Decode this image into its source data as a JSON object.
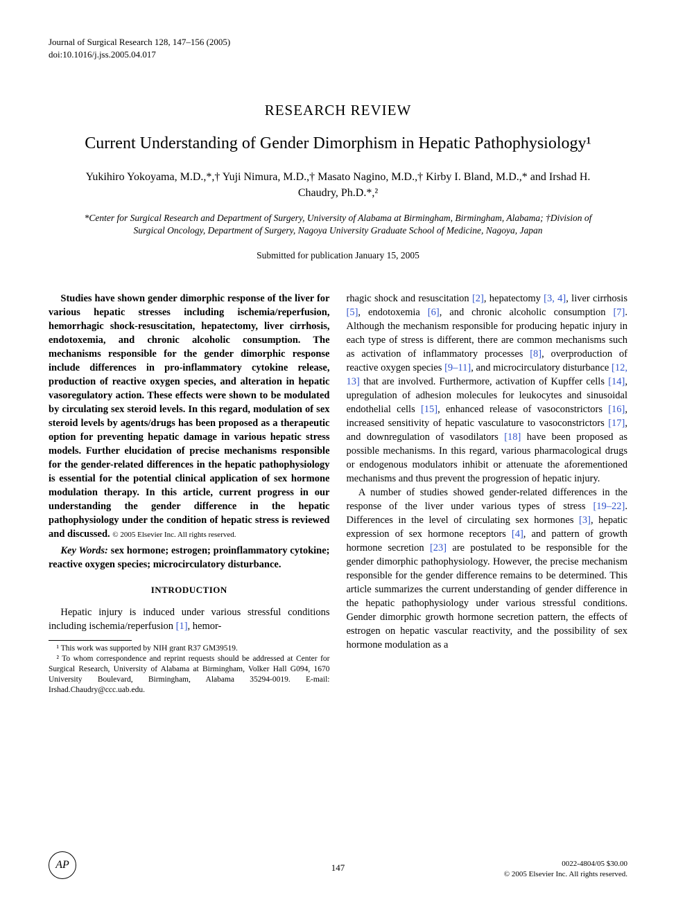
{
  "header": {
    "journal_line": "Journal of Surgical Research 128, 147–156 (2005)",
    "doi_line": "doi:10.1016/j.jss.2005.04.017"
  },
  "article_type": "RESEARCH REVIEW",
  "title": "Current Understanding of Gender Dimorphism in Hepatic Pathophysiology¹",
  "authors": "Yukihiro Yokoyama, M.D.,*,† Yuji Nimura, M.D.,† Masato Nagino, M.D.,† Kirby I. Bland, M.D.,* and Irshad H. Chaudry, Ph.D.*,²",
  "affiliations": "*Center for Surgical Research and Department of Surgery, University of Alabama at Birmingham, Birmingham, Alabama; †Division of Surgical Oncology, Department of Surgery, Nagoya University Graduate School of Medicine, Nagoya, Japan",
  "submitted": "Submitted for publication January 15, 2005",
  "abstract_text": "Studies have shown gender dimorphic response of the liver for various hepatic stresses including ischemia/reperfusion, hemorrhagic shock-resuscitation, hepatectomy, liver cirrhosis, endotoxemia, and chronic alcoholic consumption. The mechanisms responsible for the gender dimorphic response include differences in pro-inflammatory cytokine release, production of reactive oxygen species, and alteration in hepatic vasoregulatory action. These effects were shown to be modulated by circulating sex steroid levels. In this regard, modulation of sex steroid levels by agents/drugs has been proposed as a therapeutic option for preventing hepatic damage in various hepatic stress models. Further elucidation of precise mechanisms responsible for the gender-related differences in the hepatic pathophysiology is essential for the potential clinical application of sex hormone modulation therapy. In this article, current progress in our understanding the gender difference in the hepatic pathophysiology under the condition of hepatic stress is reviewed and discussed.",
  "abstract_copyright": "© 2005 Elsevier Inc. All rights reserved.",
  "keywords_label": "Key Words:",
  "keywords_text": " sex hormone; estrogen; proinflammatory cytokine; reactive oxygen species; microcirculatory disturbance.",
  "section_introduction": "INTRODUCTION",
  "intro_left": "Hepatic injury is induced under various stressful conditions including ischemia/reperfusion ",
  "intro_left_tail": ", hemor-",
  "ref1": "[1]",
  "footnotes": {
    "fn1": "¹ This work was supported by NIH grant R37 GM39519.",
    "fn2": "² To whom correspondence and reprint requests should be addressed at Center for Surgical Research, University of Alabama at Birmingham, Volker Hall G094, 1670 University Boulevard, Birmingham, Alabama 35294-0019. E-mail: Irshad.Chaudry@ccc.uab.edu."
  },
  "right_col": {
    "p1a": "rhagic shock and resuscitation ",
    "r2": "[2]",
    "p1b": ", hepatectomy ",
    "r34": "[3, 4]",
    "p1c": ", liver cirrhosis ",
    "r5": "[5]",
    "p1d": ", endotoxemia ",
    "r6": "[6]",
    "p1e": ", and chronic alcoholic consumption ",
    "r7": "[7]",
    "p1f": ". Although the mechanism responsible for producing hepatic injury in each type of stress is different, there are common mechanisms such as activation of inflammatory processes ",
    "r8": "[8]",
    "p1g": ", overproduction of reactive oxygen species ",
    "r911": "[9–11]",
    "p1h": ", and microcirculatory disturbance ",
    "r1213": "[12, 13]",
    "p1i": " that are involved. Furthermore, activation of Kupffer cells ",
    "r14": "[14]",
    "p1j": ", upregulation of adhesion molecules for leukocytes and sinusoidal endothelial cells ",
    "r15": "[15]",
    "p1k": ", enhanced release of vasoconstrictors ",
    "r16": "[16]",
    "p1l": ", increased sensitivity of hepatic vasculature to vasoconstrictors ",
    "r17": "[17]",
    "p1m": ", and downregulation of vasodilators ",
    "r18": "[18]",
    "p1n": " have been proposed as possible mechanisms. In this regard, various pharmacological drugs or endogenous modulators inhibit or attenuate the aforementioned mechanisms and thus prevent the progression of hepatic injury.",
    "p2a": "A number of studies showed gender-related differences in the response of the liver under various types of stress ",
    "r1922": "[19–22]",
    "p2b": ". Differences in the level of circulating sex hormones ",
    "r3b": "[3]",
    "p2c": ", hepatic expression of sex hormone receptors ",
    "r4b": "[4]",
    "p2d": ", and pattern of growth hormone secretion ",
    "r23": "[23]",
    "p2e": " are postulated to be responsible for the gender dimorphic pathophysiology. However, the precise mechanism responsible for the gender difference remains to be determined. This article summarizes the current understanding of gender difference in the hepatic pathophysiology under various stressful conditions. Gender dimorphic growth hormone secretion pattern, the effects of estrogen on hepatic vascular reactivity, and the possibility of sex hormone modulation as a"
  },
  "footer": {
    "logo": "AP",
    "page": "147",
    "issn_price": "0022-4804/05 $30.00",
    "copyright": "© 2005 Elsevier Inc. All rights reserved."
  },
  "colors": {
    "text": "#000000",
    "ref_link": "#3355cc",
    "background": "#ffffff"
  },
  "typography": {
    "body_family": "Times New Roman",
    "title_size_pt": 18,
    "body_size_pt": 11,
    "footnote_size_pt": 8.5
  }
}
